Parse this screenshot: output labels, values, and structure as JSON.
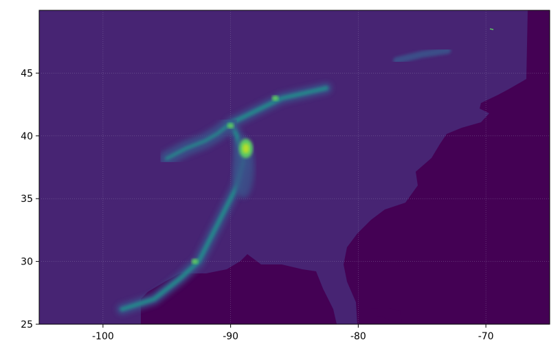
{
  "chart_data": {
    "type": "heatmap",
    "title": "",
    "xlabel": "",
    "ylabel": "",
    "xlim": [
      -105,
      -65
    ],
    "ylim": [
      25,
      50
    ],
    "x_ticks": [
      "-100",
      "-90",
      "-80",
      "-70"
    ],
    "x_tick_values": [
      -100,
      -90,
      -80,
      -70
    ],
    "y_ticks": [
      "25",
      "30",
      "35",
      "40",
      "45"
    ],
    "y_tick_values": [
      25,
      30,
      35,
      40,
      45
    ],
    "grid": true,
    "colormap": "viridis",
    "colors": {
      "ocean": "#440154",
      "land": "#472473",
      "low": "#3b528b",
      "mid": "#21918c",
      "high": "#5ec962",
      "peak": "#b5de2b"
    },
    "features": [
      {
        "name": "plume",
        "points": [
          [
            -98.5,
            26.2
          ],
          [
            -96,
            27
          ],
          [
            -94,
            28.6
          ],
          [
            -92.5,
            30
          ],
          [
            -91.5,
            32
          ],
          [
            -90.5,
            34
          ],
          [
            -89.5,
            36
          ],
          [
            -89,
            38
          ],
          [
            -89.5,
            40
          ],
          [
            -90,
            41
          ],
          [
            -88,
            42
          ],
          [
            -86,
            43
          ],
          [
            -82.5,
            43.8
          ]
        ]
      },
      {
        "name": "west-branch",
        "points": [
          [
            -95,
            38.2
          ],
          [
            -93.5,
            39
          ],
          [
            -92,
            39.6
          ],
          [
            -91,
            40.2
          ],
          [
            -90,
            41
          ]
        ]
      },
      {
        "name": "hotspot",
        "points": [
          [
            -88.8,
            39.0
          ],
          [
            -92.8,
            30.0
          ],
          [
            -86.5,
            43.0
          ],
          [
            -90,
            40.8
          ]
        ]
      },
      {
        "name": "northeast-patch",
        "points": [
          [
            -77,
            46
          ],
          [
            -75,
            46.5
          ],
          [
            -73,
            46.8
          ]
        ]
      }
    ]
  }
}
